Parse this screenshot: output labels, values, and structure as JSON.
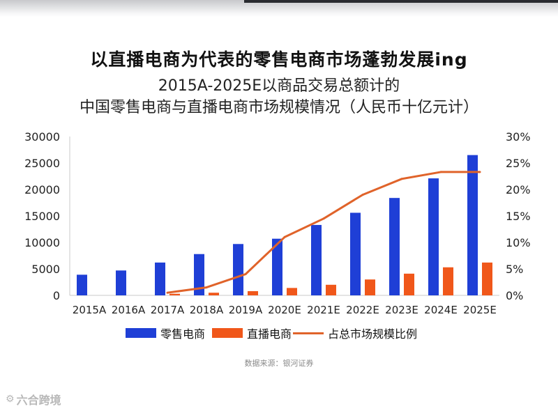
{
  "header": {
    "title": "以直播电商为代表的零售电商市场蓬勃发展ing",
    "subtitle_line1": "2015A-2025E以商品交易总额计的",
    "subtitle_line2": "中国零售电商与直播电商市场规模情况（人民币十亿元计）"
  },
  "chart_data": {
    "type": "bar",
    "categories": [
      "2015A",
      "2016A",
      "2017A",
      "2018A",
      "2019A",
      "2020E",
      "2021E",
      "2022E",
      "2023E",
      "2024E",
      "2025E"
    ],
    "series": [
      {
        "name": "零售电商",
        "kind": "bar",
        "axis": "left",
        "color": "#1f3fd6",
        "values": [
          3900,
          4700,
          6200,
          7800,
          9700,
          10700,
          13300,
          15600,
          18400,
          22100,
          26500
        ]
      },
      {
        "name": "直播电商",
        "kind": "bar",
        "axis": "left",
        "color": "#f0571a",
        "values": [
          null,
          null,
          300,
          500,
          800,
          1400,
          2000,
          3000,
          4100,
          5300,
          6200
        ]
      },
      {
        "name": "占总市场规模比例",
        "kind": "line",
        "axis": "right",
        "color": "#e0632a",
        "values": [
          null,
          null,
          0.5,
          1.5,
          4.0,
          11.0,
          14.5,
          19.0,
          22.0,
          23.3,
          23.3
        ]
      }
    ],
    "y_left": {
      "min": 0,
      "max": 30000,
      "ticks": [
        0,
        5000,
        10000,
        15000,
        20000,
        25000,
        30000
      ],
      "tick_labels": [
        "0",
        "5000",
        "10000",
        "15000",
        "20000",
        "25000",
        "30000"
      ]
    },
    "y_right": {
      "min": 0,
      "max": 30,
      "ticks": [
        0,
        5,
        10,
        15,
        20,
        25,
        30
      ],
      "tick_labels": [
        "0%",
        "5%",
        "10%",
        "15%",
        "20%",
        "25%",
        "30%"
      ]
    },
    "grid": false,
    "legend_position": "bottom"
  },
  "legend": {
    "retail": "零售电商",
    "live": "直播电商",
    "ratio": "占总市场规模比例"
  },
  "source": "数据来源：银河证券",
  "watermark": "六合跨境"
}
